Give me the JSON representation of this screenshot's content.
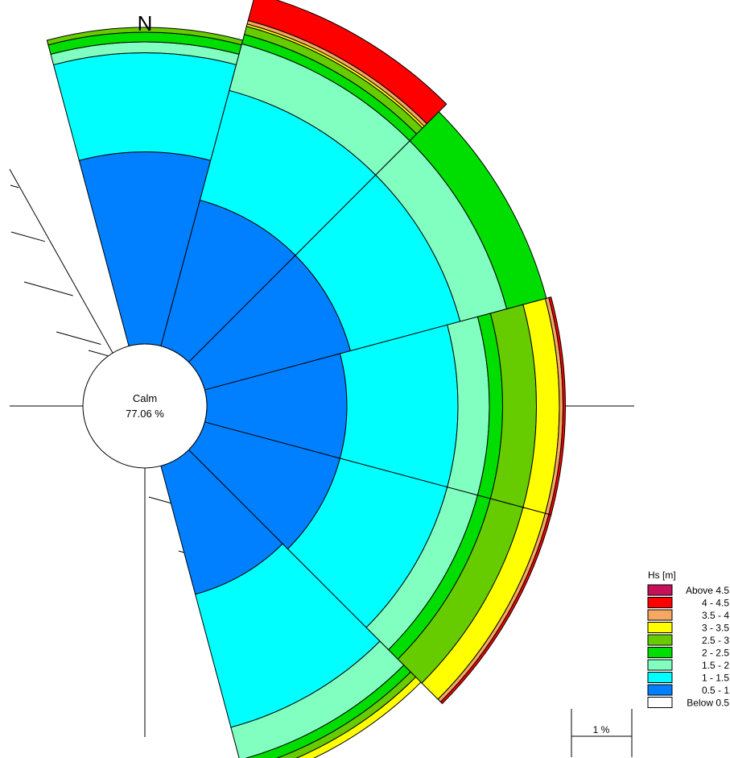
{
  "chart_data": {
    "type": "wind-rose",
    "north_label": "N",
    "calm": {
      "label": "Calm",
      "value_text": "77.06 %"
    },
    "scale_label": "1 %",
    "legend": {
      "title": "Hs [m]",
      "items": [
        {
          "label": "Above 4.5",
          "color": "#c8105a"
        },
        {
          "label": "4 - 4.5",
          "color": "#ff0000"
        },
        {
          "label": "3.5 -   4",
          "color": "#f5a862"
        },
        {
          "label": "3 - 3.5",
          "color": "#ffff00"
        },
        {
          "label": "2.5 -   3",
          "color": "#66cc00"
        },
        {
          "label": "2 - 2.5",
          "color": "#00dd00"
        },
        {
          "label": "1.5 -   2",
          "color": "#80ffc0"
        },
        {
          "label": "1 - 1.5",
          "color": "#00ffff"
        },
        {
          "label": "0.5 -   1",
          "color": "#0080ff"
        },
        {
          "label": "Below 0.5",
          "color": "#ffffff"
        }
      ]
    },
    "unit_percent_per_band_scale": "cumulative frequency (%)",
    "sectors": [
      {
        "direction_deg": 0,
        "cumulative_percent": [
          0.0,
          1.59,
          2.41,
          2.5,
          2.58,
          2.62
        ]
      },
      {
        "direction_deg": 30,
        "cumulative_percent": [
          0.0,
          1.25,
          2.19,
          2.59,
          2.67,
          2.74,
          2.76,
          2.79,
          3.02
        ]
      },
      {
        "direction_deg": 45,
        "cumulative_percent": [
          0.0,
          1.25,
          2.19,
          2.59,
          2.93
        ]
      },
      {
        "direction_deg": 75,
        "cumulative_percent": [
          0.0,
          1.16,
          2.08,
          2.34,
          2.45,
          2.73,
          2.92,
          2.95,
          2.97
        ]
      },
      {
        "direction_deg": 105,
        "cumulative_percent": [
          0.0,
          1.16,
          2.08,
          2.34,
          2.45,
          2.73,
          2.92,
          2.95,
          2.97
        ]
      },
      {
        "direction_deg": 135,
        "cumulative_percent": [
          0.0,
          1.1,
          2.24,
          2.52,
          2.6,
          2.66,
          2.72
        ]
      }
    ]
  }
}
